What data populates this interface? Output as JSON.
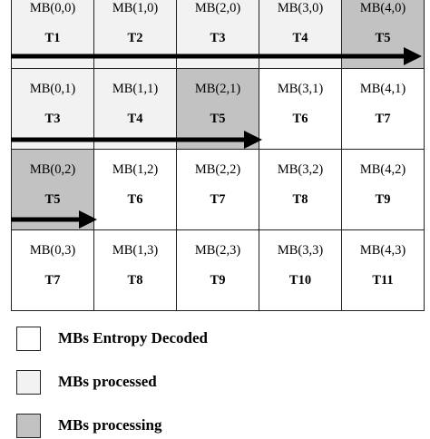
{
  "colors": {
    "entropy_decoded": "#ffffff",
    "processed": "#f2f2f2",
    "processing": "#c2c2c2",
    "arrow": "#000000"
  },
  "grid": {
    "rows": [
      [
        {
          "mb": "MB(0,0)",
          "t": "T1",
          "state": "processed"
        },
        {
          "mb": "MB(1,0)",
          "t": "T2",
          "state": "processed"
        },
        {
          "mb": "MB(2,0)",
          "t": "T3",
          "state": "processed"
        },
        {
          "mb": "MB(3,0)",
          "t": "T4",
          "state": "processed"
        },
        {
          "mb": "MB(4,0)",
          "t": "T5",
          "state": "processing"
        }
      ],
      [
        {
          "mb": "MB(0,1)",
          "t": "T3",
          "state": "processed"
        },
        {
          "mb": "MB(1,1)",
          "t": "T4",
          "state": "processed"
        },
        {
          "mb": "MB(2,1)",
          "t": "T5",
          "state": "processing"
        },
        {
          "mb": "MB(3,1)",
          "t": "T6",
          "state": "entropy_decoded"
        },
        {
          "mb": "MB(4,1)",
          "t": "T7",
          "state": "entropy_decoded"
        }
      ],
      [
        {
          "mb": "MB(0,2)",
          "t": "T5",
          "state": "processing"
        },
        {
          "mb": "MB(1,2)",
          "t": "T6",
          "state": "entropy_decoded"
        },
        {
          "mb": "MB(2,2)",
          "t": "T7",
          "state": "entropy_decoded"
        },
        {
          "mb": "MB(3,2)",
          "t": "T8",
          "state": "entropy_decoded"
        },
        {
          "mb": "MB(4,2)",
          "t": "T9",
          "state": "entropy_decoded"
        }
      ],
      [
        {
          "mb": "MB(0,3)",
          "t": "T7",
          "state": "entropy_decoded"
        },
        {
          "mb": "MB(1,3)",
          "t": "T8",
          "state": "entropy_decoded"
        },
        {
          "mb": "MB(2,3)",
          "t": "T9",
          "state": "entropy_decoded"
        },
        {
          "mb": "MB(3,3)",
          "t": "T10",
          "state": "entropy_decoded"
        },
        {
          "mb": "MB(4,3)",
          "t": "T11",
          "state": "entropy_decoded"
        }
      ]
    ]
  },
  "legend": {
    "entropy_decoded": "MBs Entropy Decoded",
    "processed": "MBs processed",
    "processing": "MBs processing"
  }
}
